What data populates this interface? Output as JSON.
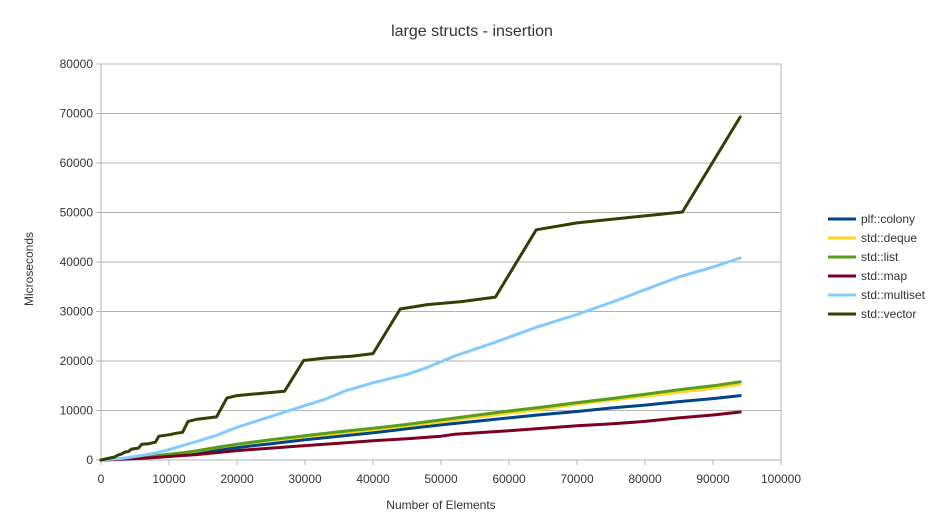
{
  "chart_data": {
    "type": "line",
    "title": "large structs - insertion",
    "xlabel": "Number of Elements",
    "ylabel": "Microseconds",
    "xlim": [
      0,
      100000
    ],
    "ylim": [
      0,
      80000
    ],
    "x_ticks": [
      0,
      10000,
      20000,
      30000,
      40000,
      50000,
      60000,
      70000,
      80000,
      90000,
      100000
    ],
    "y_ticks": [
      0,
      10000,
      20000,
      30000,
      40000,
      50000,
      60000,
      70000,
      80000
    ],
    "x_tick_labels": [
      "0",
      "10000",
      "20000",
      "30000",
      "40000",
      "50000",
      "60000",
      "70000",
      "80000",
      "90000",
      "100000"
    ],
    "y_tick_labels": [
      "0",
      "10000",
      "20000",
      "30000",
      "40000",
      "50000",
      "60000",
      "70000",
      "80000"
    ],
    "grid": "horizontal",
    "legend_position": "right",
    "series": [
      {
        "name": "plf::colony",
        "color": "#004586",
        "points": [
          [
            0,
            0
          ],
          [
            1000,
            60
          ],
          [
            2000,
            130
          ],
          [
            3000,
            220
          ],
          [
            4000,
            310
          ],
          [
            5000,
            410
          ],
          [
            6000,
            500
          ],
          [
            8000,
            700
          ],
          [
            10000,
            900
          ],
          [
            12000,
            1200
          ],
          [
            14000,
            1500
          ],
          [
            17000,
            2000
          ],
          [
            20000,
            2500
          ],
          [
            25000,
            3300
          ],
          [
            30000,
            4100
          ],
          [
            35000,
            4800
          ],
          [
            40000,
            5500
          ],
          [
            45000,
            6300
          ],
          [
            50000,
            7100
          ],
          [
            55000,
            7800
          ],
          [
            60000,
            8500
          ],
          [
            65000,
            9200
          ],
          [
            70000,
            9800
          ],
          [
            75000,
            10500
          ],
          [
            80000,
            11100
          ],
          [
            85000,
            11800
          ],
          [
            90000,
            12400
          ],
          [
            94000,
            13000
          ]
        ]
      },
      {
        "name": "std::deque",
        "color": "#ffd320",
        "points": [
          [
            0,
            0
          ],
          [
            1000,
            70
          ],
          [
            2000,
            150
          ],
          [
            3000,
            250
          ],
          [
            4000,
            350
          ],
          [
            5000,
            450
          ],
          [
            6000,
            550
          ],
          [
            8000,
            800
          ],
          [
            10000,
            1100
          ],
          [
            12000,
            1400
          ],
          [
            14000,
            1800
          ],
          [
            17000,
            2500
          ],
          [
            20000,
            3100
          ],
          [
            25000,
            4000
          ],
          [
            30000,
            4700
          ],
          [
            35000,
            5400
          ],
          [
            40000,
            6100
          ],
          [
            45000,
            6900
          ],
          [
            50000,
            7700
          ],
          [
            55000,
            8600
          ],
          [
            60000,
            9500
          ],
          [
            65000,
            10300
          ],
          [
            70000,
            11300
          ],
          [
            75000,
            12100
          ],
          [
            80000,
            12900
          ],
          [
            85000,
            13700
          ],
          [
            90000,
            14500
          ],
          [
            94000,
            15300
          ]
        ]
      },
      {
        "name": "std::list",
        "color": "#579d1c",
        "points": [
          [
            0,
            0
          ],
          [
            1000,
            80
          ],
          [
            2000,
            160
          ],
          [
            3000,
            260
          ],
          [
            4000,
            360
          ],
          [
            5000,
            470
          ],
          [
            6000,
            580
          ],
          [
            8000,
            850
          ],
          [
            10000,
            1150
          ],
          [
            12000,
            1450
          ],
          [
            14000,
            1850
          ],
          [
            17000,
            2550
          ],
          [
            20000,
            3200
          ],
          [
            25000,
            4100
          ],
          [
            30000,
            4900
          ],
          [
            35000,
            5700
          ],
          [
            40000,
            6400
          ],
          [
            45000,
            7200
          ],
          [
            50000,
            8100
          ],
          [
            55000,
            9000
          ],
          [
            60000,
            9900
          ],
          [
            65000,
            10700
          ],
          [
            70000,
            11600
          ],
          [
            75000,
            12400
          ],
          [
            80000,
            13300
          ],
          [
            85000,
            14200
          ],
          [
            90000,
            15000
          ],
          [
            94000,
            15800
          ]
        ]
      },
      {
        "name": "std::map",
        "color": "#7e0021",
        "points": [
          [
            0,
            0
          ],
          [
            1000,
            40
          ],
          [
            2000,
            90
          ],
          [
            3000,
            150
          ],
          [
            4000,
            210
          ],
          [
            5000,
            270
          ],
          [
            6000,
            330
          ],
          [
            8000,
            500
          ],
          [
            10000,
            700
          ],
          [
            12000,
            900
          ],
          [
            14000,
            1100
          ],
          [
            17000,
            1500
          ],
          [
            20000,
            1900
          ],
          [
            25000,
            2400
          ],
          [
            30000,
            2900
          ],
          [
            35000,
            3400
          ],
          [
            40000,
            3900
          ],
          [
            45000,
            4300
          ],
          [
            50000,
            4800
          ],
          [
            52000,
            5200
          ],
          [
            60000,
            5900
          ],
          [
            65000,
            6400
          ],
          [
            70000,
            6900
          ],
          [
            75000,
            7300
          ],
          [
            80000,
            7800
          ],
          [
            85000,
            8500
          ],
          [
            90000,
            9100
          ],
          [
            94000,
            9700
          ]
        ]
      },
      {
        "name": "std::multiset",
        "color": "#83caff",
        "points": [
          [
            0,
            0
          ],
          [
            1000,
            100
          ],
          [
            2000,
            200
          ],
          [
            3000,
            300
          ],
          [
            4000,
            500
          ],
          [
            5000,
            700
          ],
          [
            6000,
            900
          ],
          [
            8000,
            1400
          ],
          [
            10000,
            2100
          ],
          [
            12000,
            2900
          ],
          [
            14000,
            3700
          ],
          [
            17000,
            5000
          ],
          [
            20000,
            6600
          ],
          [
            25000,
            8800
          ],
          [
            30000,
            11000
          ],
          [
            33000,
            12300
          ],
          [
            36000,
            14000
          ],
          [
            40000,
            15600
          ],
          [
            45000,
            17300
          ],
          [
            48000,
            18700
          ],
          [
            52000,
            21000
          ],
          [
            58000,
            23800
          ],
          [
            64000,
            26800
          ],
          [
            70000,
            29400
          ],
          [
            76000,
            32300
          ],
          [
            80000,
            34400
          ],
          [
            85000,
            37000
          ],
          [
            90000,
            39000
          ],
          [
            94000,
            40800
          ]
        ]
      },
      {
        "name": "std::vector",
        "color": "#314004",
        "points": [
          [
            0,
            0
          ],
          [
            1000,
            300
          ],
          [
            2000,
            600
          ],
          [
            2500,
            1000
          ],
          [
            3000,
            1200
          ],
          [
            3500,
            1600
          ],
          [
            4000,
            1700
          ],
          [
            4500,
            2200
          ],
          [
            5500,
            2400
          ],
          [
            6000,
            3200
          ],
          [
            7000,
            3300
          ],
          [
            8000,
            3600
          ],
          [
            8500,
            4800
          ],
          [
            10000,
            5100
          ],
          [
            11000,
            5400
          ],
          [
            12000,
            5600
          ],
          [
            12800,
            7800
          ],
          [
            14000,
            8200
          ],
          [
            17000,
            8700
          ],
          [
            18500,
            12500
          ],
          [
            20000,
            13000
          ],
          [
            23000,
            13400
          ],
          [
            27000,
            13900
          ],
          [
            29800,
            20100
          ],
          [
            33000,
            20600
          ],
          [
            37000,
            21000
          ],
          [
            40000,
            21500
          ],
          [
            44000,
            30500
          ],
          [
            48000,
            31400
          ],
          [
            53000,
            32000
          ],
          [
            58000,
            32900
          ],
          [
            64000,
            46500
          ],
          [
            70000,
            47900
          ],
          [
            85500,
            50100
          ],
          [
            94000,
            69300
          ]
        ]
      }
    ]
  }
}
